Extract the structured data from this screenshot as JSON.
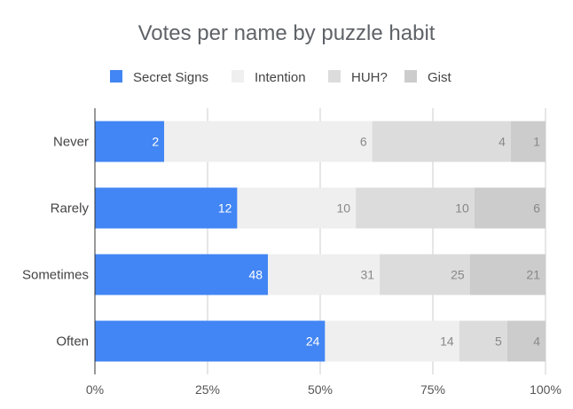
{
  "chart_data": {
    "type": "bar",
    "orientation": "horizontal",
    "stacking": "percent",
    "title": "Votes per name by puzzle habit",
    "xlabel": "",
    "ylabel": "",
    "categories": [
      "Never",
      "Rarely",
      "Sometimes",
      "Often"
    ],
    "series": [
      {
        "name": "Secret Signs",
        "color": "#4285f4",
        "label_color": "#ffffff",
        "values": [
          2,
          12,
          48,
          24
        ]
      },
      {
        "name": "Intention",
        "color": "#efefef",
        "label_color": "#888888",
        "values": [
          6,
          10,
          31,
          14
        ]
      },
      {
        "name": "HUH?",
        "color": "#dcdcdc",
        "label_color": "#888888",
        "values": [
          4,
          10,
          25,
          5
        ]
      },
      {
        "name": "Gist",
        "color": "#cccccc",
        "label_color": "#888888",
        "values": [
          1,
          6,
          21,
          4
        ]
      }
    ],
    "xlim": [
      0,
      100
    ],
    "xticks": [
      "0%",
      "25%",
      "50%",
      "75%",
      "100%"
    ],
    "grid": true,
    "legend": "top"
  }
}
